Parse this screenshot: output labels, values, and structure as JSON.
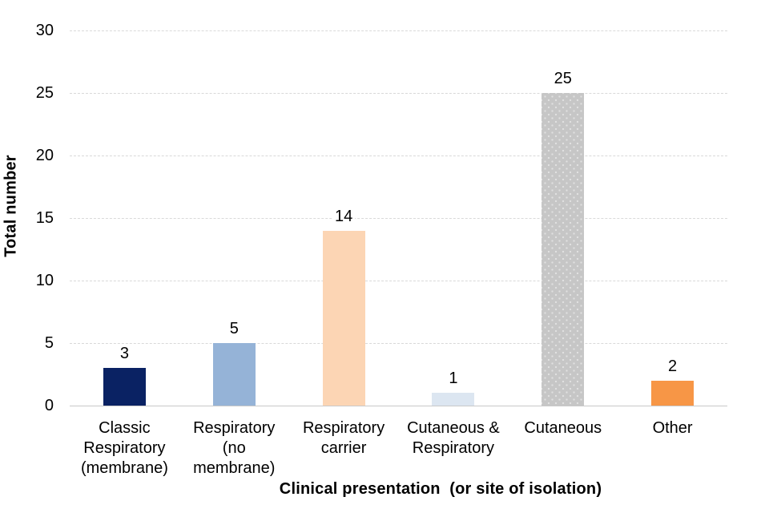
{
  "chart_data": {
    "type": "bar",
    "title": "",
    "categories": [
      "Classic\nRespiratory\n(membrane)",
      "Respiratory\n(no\nmembrane)",
      "Respiratory\ncarrier",
      "Cutaneous &\nRespiratory",
      "Cutaneous",
      "Other"
    ],
    "values": [
      3,
      5,
      14,
      1,
      25,
      2
    ],
    "data_labels": [
      "3",
      "5",
      "14",
      "1",
      "25",
      "2"
    ],
    "bar_colors": [
      "#0a2263",
      "#95b3d7",
      "#fcd5b4",
      "#dce6f1",
      "#c6c6c6",
      "#f79646"
    ],
    "bar_patterns": [
      "none",
      "none",
      "none",
      "none",
      "dots",
      "none"
    ],
    "xlabel": "Clinical presentation  (or site of isolation)",
    "ylabel": "Total number",
    "ylim": [
      0,
      30
    ],
    "yticks": [
      0,
      5,
      10,
      15,
      20,
      25,
      30
    ],
    "grid": "horizontal-dashed-light-gray",
    "legend": "none",
    "gridline_color": "#d9d9d9",
    "axis_line_color": "#c9c9c9",
    "text_color": "#000000"
  }
}
